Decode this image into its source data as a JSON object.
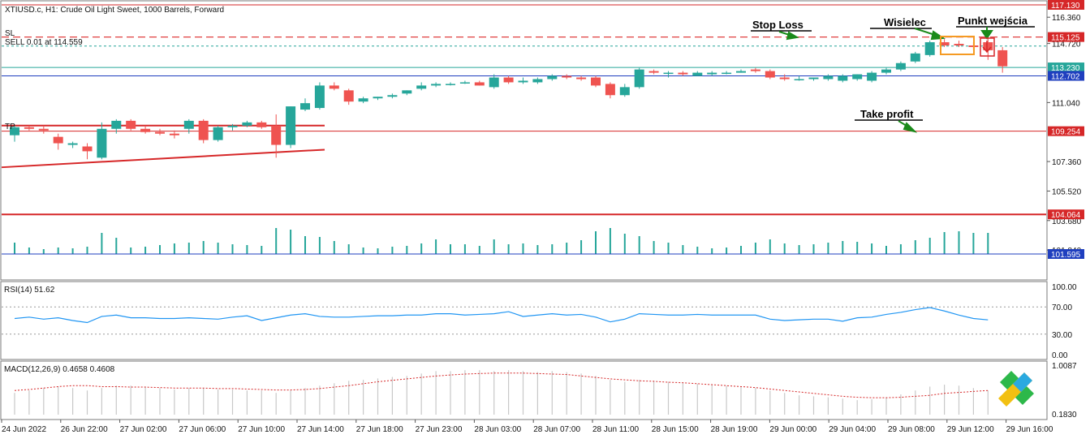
{
  "header": {
    "symbol_line": "XTIUSD.c, H1:  Crude Oil Light Sweet, 1000 Barrels, Forward",
    "sl_label": "SL",
    "order_label": "SELL 0.01 at 114.559",
    "tp_label": "TP"
  },
  "annotations": {
    "stop_loss": "Stop Loss",
    "hanging_man": "Wisielec",
    "entry_point": "Punkt wejścia",
    "take_profit": "Take profit"
  },
  "price_axis": {
    "ticks": [
      "116.360",
      "114.720",
      "111.040",
      "107.360",
      "105.520",
      "103.680",
      "101.840"
    ],
    "tags": [
      {
        "text": "117.130",
        "value": 117.13,
        "color": "#d62728"
      },
      {
        "text": "115.125",
        "value": 115.125,
        "color": "#d62728"
      },
      {
        "text": "113.230",
        "value": 113.23,
        "color": "#26a69a"
      },
      {
        "text": "112.702",
        "value": 112.702,
        "color": "#1f3fbf"
      },
      {
        "text": "109.254",
        "value": 109.254,
        "color": "#d62728"
      },
      {
        "text": "104.064",
        "value": 104.064,
        "color": "#d62728"
      },
      {
        "text": "101.595",
        "value": 101.595,
        "color": "#1f3fbf"
      }
    ]
  },
  "rsi": {
    "label": "RSI(14) 51.62",
    "ticks": [
      "100.00",
      "70.00",
      "30.00",
      "0.00"
    ]
  },
  "macd": {
    "label": "MACD(12,26,9) 0.4658 0.4608",
    "ticks": [
      "1.0087",
      "0.1830"
    ]
  },
  "time_axis": [
    "24 Jun 2022",
    "26 Jun 22:00",
    "27 Jun 02:00",
    "27 Jun 06:00",
    "27 Jun 10:00",
    "27 Jun 14:00",
    "27 Jun 18:00",
    "27 Jun 23:00",
    "28 Jun 03:00",
    "28 Jun 07:00",
    "28 Jun 11:00",
    "28 Jun 15:00",
    "28 Jun 19:00",
    "29 Jun 00:00",
    "29 Jun 04:00",
    "29 Jun 08:00",
    "29 Jun 12:00",
    "29 Jun 16:00"
  ],
  "colors": {
    "bull": "#26a69a",
    "bear": "#ef5350",
    "rsi": "#2196f3",
    "macd_signal": "#d62728",
    "volume": "#26a69a",
    "hist": "#c8c8c8"
  },
  "chart_data": {
    "type": "candlestick",
    "title": "XTIUSD.c, H1: Crude Oil Light Sweet, 1000 Barrels, Forward",
    "ohlc": [
      [
        109.0,
        109.6,
        108.6,
        109.5
      ],
      [
        109.5,
        109.6,
        109.3,
        109.4
      ],
      [
        109.4,
        109.6,
        109.1,
        109.3
      ],
      [
        108.9,
        109.1,
        108.1,
        108.5
      ],
      [
        108.4,
        108.6,
        108.2,
        108.5
      ],
      [
        108.3,
        108.5,
        107.5,
        108.0
      ],
      [
        107.6,
        109.8,
        107.5,
        109.4
      ],
      [
        109.4,
        110.0,
        109.1,
        109.9
      ],
      [
        109.9,
        110.0,
        109.3,
        109.4
      ],
      [
        109.4,
        109.6,
        109.1,
        109.2
      ],
      [
        109.2,
        109.4,
        109.0,
        109.1
      ],
      [
        109.1,
        109.3,
        108.8,
        109.0
      ],
      [
        109.4,
        110.0,
        109.1,
        109.9
      ],
      [
        109.9,
        110.0,
        108.5,
        108.7
      ],
      [
        108.7,
        109.6,
        108.6,
        109.5
      ],
      [
        109.5,
        109.7,
        109.3,
        109.6
      ],
      [
        109.6,
        109.9,
        109.5,
        109.8
      ],
      [
        109.8,
        109.9,
        109.4,
        109.5
      ],
      [
        109.6,
        110.3,
        107.6,
        108.4
      ],
      [
        108.4,
        110.8,
        108.2,
        110.8
      ],
      [
        110.6,
        111.3,
        110.5,
        111.0
      ],
      [
        110.7,
        112.3,
        110.6,
        112.1
      ],
      [
        112.1,
        112.3,
        111.8,
        111.9
      ],
      [
        111.8,
        111.9,
        110.9,
        111.1
      ],
      [
        111.1,
        111.4,
        111.0,
        111.3
      ],
      [
        111.3,
        111.4,
        111.2,
        111.4
      ],
      [
        111.4,
        111.6,
        111.3,
        111.5
      ],
      [
        111.6,
        111.8,
        111.5,
        111.8
      ],
      [
        111.9,
        112.3,
        111.8,
        112.1
      ],
      [
        112.1,
        112.3,
        112.0,
        112.2
      ],
      [
        112.2,
        112.3,
        112.1,
        112.2
      ],
      [
        112.3,
        112.4,
        112.2,
        112.3
      ],
      [
        112.3,
        112.4,
        112.1,
        112.1
      ],
      [
        112.0,
        112.8,
        111.9,
        112.6
      ],
      [
        112.6,
        112.7,
        112.2,
        112.3
      ],
      [
        112.3,
        112.6,
        112.2,
        112.4
      ],
      [
        112.3,
        112.6,
        112.2,
        112.5
      ],
      [
        112.5,
        112.8,
        112.4,
        112.7
      ],
      [
        112.7,
        112.8,
        112.5,
        112.6
      ],
      [
        112.6,
        112.7,
        112.4,
        112.5
      ],
      [
        112.6,
        112.7,
        112.0,
        112.1
      ],
      [
        112.2,
        112.3,
        111.3,
        111.5
      ],
      [
        111.5,
        112.2,
        111.4,
        112.0
      ],
      [
        112.0,
        113.2,
        111.9,
        113.1
      ],
      [
        113.0,
        113.1,
        112.8,
        112.9
      ],
      [
        112.9,
        113.0,
        112.6,
        112.9
      ],
      [
        112.9,
        113.0,
        112.7,
        112.8
      ],
      [
        112.7,
        113.0,
        112.7,
        112.9
      ],
      [
        112.8,
        113.0,
        112.7,
        112.9
      ],
      [
        112.9,
        113.0,
        112.8,
        112.9
      ],
      [
        112.9,
        113.1,
        112.9,
        113.0
      ],
      [
        113.1,
        113.2,
        112.9,
        113.0
      ],
      [
        113.0,
        113.1,
        112.5,
        112.6
      ],
      [
        112.6,
        112.8,
        112.4,
        112.5
      ],
      [
        112.5,
        112.7,
        112.4,
        112.5
      ],
      [
        112.5,
        112.6,
        112.4,
        112.6
      ],
      [
        112.5,
        112.8,
        112.4,
        112.7
      ],
      [
        112.4,
        112.8,
        112.3,
        112.7
      ],
      [
        112.5,
        112.8,
        112.4,
        112.8
      ],
      [
        112.4,
        113.0,
        112.3,
        112.9
      ],
      [
        112.9,
        113.2,
        112.8,
        113.1
      ],
      [
        113.1,
        113.6,
        113.0,
        113.5
      ],
      [
        113.6,
        114.2,
        113.5,
        114.1
      ],
      [
        114.0,
        114.9,
        113.9,
        114.8
      ],
      [
        114.8,
        115.0,
        114.5,
        114.6
      ],
      [
        114.7,
        114.9,
        114.5,
        114.6
      ],
      [
        114.6,
        114.8,
        114.3,
        114.5
      ],
      [
        114.8,
        115.1,
        113.7,
        114.3
      ],
      [
        114.3,
        114.5,
        112.9,
        113.3
      ]
    ],
    "levels": {
      "sl": 115.125,
      "entry": 114.559,
      "tp": 109.254,
      "support": 104.064,
      "high": 117.13,
      "bid": 113.23,
      "ask": 112.702
    },
    "ylim": [
      101.2,
      117.3
    ]
  }
}
